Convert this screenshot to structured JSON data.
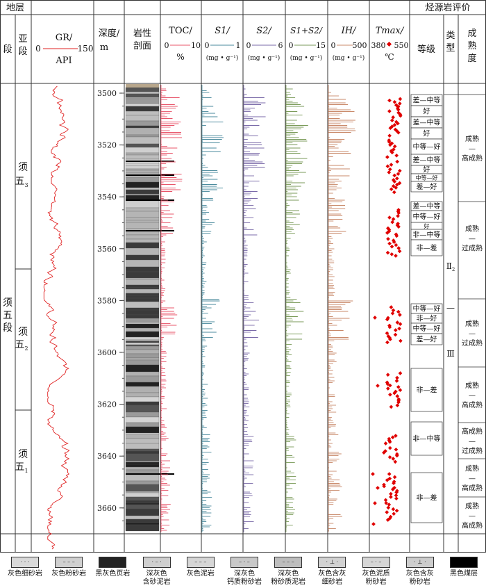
{
  "header": {
    "stratum": "地层",
    "evaluation": "烃源岩评价",
    "section": "段",
    "subsection": "亚段",
    "gr_title": "GR/",
    "gr_unit": "API",
    "gr_min": "0",
    "gr_max": "150",
    "depth_title": "深度/",
    "depth_unit": "m",
    "lith_title_1": "岩性",
    "lith_title_2": "剖面",
    "toc_title": "TOC/",
    "toc_min": "0",
    "toc_max": "10",
    "toc_unit": "%",
    "s1_title": "S1/",
    "s1_min": "0",
    "s1_max": "1",
    "s2_title": "S2/",
    "s2_min": "0",
    "s2_max": "6",
    "s12_title": "S1+S2/",
    "s12_min": "0",
    "s12_max": "15",
    "ih_title": "IH/",
    "ih_min": "0",
    "ih_max": "500",
    "pyro_unit": "(mg • g⁻¹)",
    "tmax_title": "Tmax/",
    "tmax_min": "380",
    "tmax_max": "550",
    "tmax_unit": "℃",
    "grade": "等级",
    "type_1": "类",
    "type_2": "型",
    "maturity": "成熟度"
  },
  "formation": {
    "section_name": "须五段",
    "subsections": [
      "须五3",
      "须五2",
      "须五1"
    ],
    "type_label_top": "Ⅱ2",
    "type_label_mid": "—",
    "type_label_bot": "Ⅲ"
  },
  "depth_ticks": [
    3500,
    3520,
    3540,
    3560,
    3580,
    3600,
    3620,
    3640,
    3660
  ],
  "grades": [
    "差—中等",
    "好",
    "差—中等",
    "好",
    "中等—好",
    "差—中等",
    "好",
    "中等—好",
    "差—好",
    "差—中等",
    "中等—好",
    "好",
    "非—中等",
    "非—差",
    "中等—好",
    "非—好",
    "中等—好",
    "差—好",
    "非—差",
    "非—中等",
    "非—差"
  ],
  "maturity_levels": [
    "成熟",
    "—",
    "高成熟",
    "成熟",
    "—",
    "过成熟",
    "成熟",
    "—",
    "过成熟",
    "成熟",
    "—",
    "高成熟",
    "高成熟",
    "—",
    "过成熟",
    "成熟",
    "—",
    "高成熟",
    "成熟",
    "—",
    "高成熟"
  ],
  "legend": [
    {
      "label": "灰色细砂岩",
      "label2": ""
    },
    {
      "label": "灰色粉砂岩",
      "label2": ""
    },
    {
      "label": "黑灰色页岩",
      "label2": ""
    },
    {
      "label": "深灰色",
      "label2": "含砂泥岩"
    },
    {
      "label": "灰色泥岩",
      "label2": ""
    },
    {
      "label": "深灰色",
      "label2": "钙质粉砂岩"
    },
    {
      "label": "深灰色",
      "label2": "粉砂质泥岩"
    },
    {
      "label": "灰色含灰",
      "label2": "细砂岩"
    },
    {
      "label": "灰色泥质",
      "label2": "粉砂岩"
    },
    {
      "label": "灰色含灰",
      "label2": "粉砂岩"
    },
    {
      "label": "黑色煤层",
      "label2": ""
    }
  ],
  "colors": {
    "gr": "#e02020",
    "toc": "#e8556a",
    "s1": "#4a8a9c",
    "s2": "#7a6aa8",
    "s12": "#7a9a58",
    "ih": "#c9896a",
    "tmax": "#e00000",
    "border": "#333333"
  }
}
